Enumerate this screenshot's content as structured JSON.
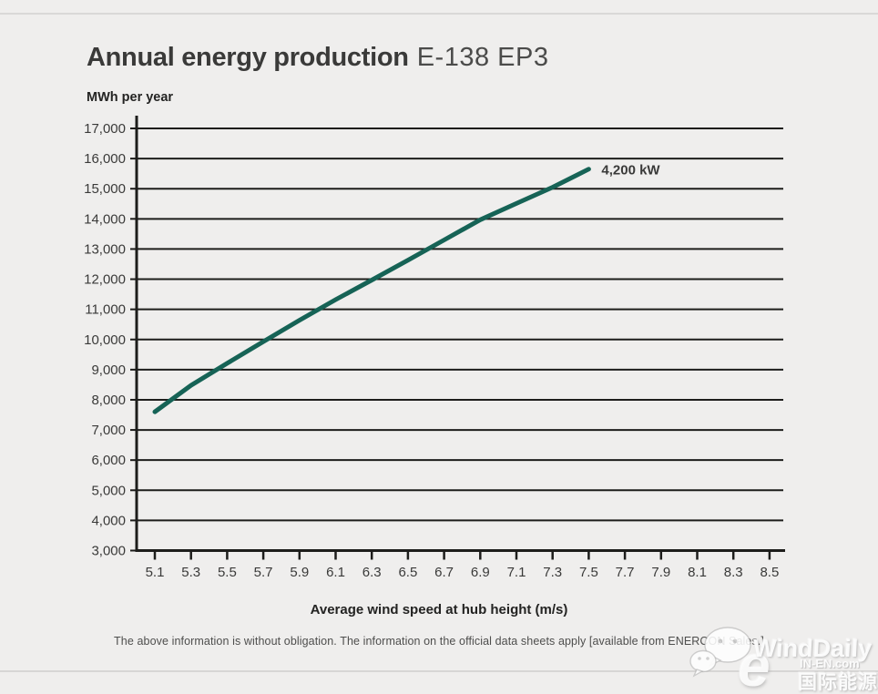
{
  "page": {
    "title_bold": "Annual energy production",
    "title_light": "E-138 EP3",
    "disclaimer": "The above information is without obligation. The information on the official data sheets apply [available from ENERCON Sales.]"
  },
  "chart_data": {
    "type": "line",
    "title": "Annual energy production E-138 EP3",
    "ylabel": "MWh per year",
    "xlabel": "Average wind speed at hub height (m/s)",
    "xlim": [
      5.1,
      8.5
    ],
    "ylim": [
      3000,
      17000
    ],
    "grid": "horizontal-only",
    "legend_position": "label-at-line-end",
    "x_ticks": [
      5.1,
      5.3,
      5.5,
      5.7,
      5.9,
      6.1,
      6.3,
      6.5,
      6.7,
      6.9,
      7.1,
      7.3,
      7.5,
      7.7,
      7.9,
      8.1,
      8.3,
      8.5
    ],
    "y_ticks": [
      3000,
      4000,
      5000,
      6000,
      7000,
      8000,
      9000,
      10000,
      11000,
      12000,
      13000,
      14000,
      15000,
      16000,
      17000
    ],
    "series": [
      {
        "name": "4,200 kW",
        "x": [
          5.1,
          5.3,
          5.5,
          5.7,
          5.9,
          6.1,
          6.3,
          6.5,
          6.7,
          6.9,
          7.1,
          7.3,
          7.5
        ],
        "y": [
          7600,
          8480,
          9210,
          9930,
          10640,
          11320,
          11970,
          12630,
          13300,
          13970,
          14510,
          15050,
          15650
        ]
      }
    ],
    "colors": {
      "line": "#166356",
      "axis": "#1d1d1b",
      "label": "#3a3a39",
      "background": "#efeeed"
    }
  },
  "watermark": {
    "name_en": "WindDaily",
    "name_cn": "国际能源网",
    "domain": "IN-EN.com",
    "logo_letter": "e",
    "icon": "chat-bubbles-icon"
  }
}
